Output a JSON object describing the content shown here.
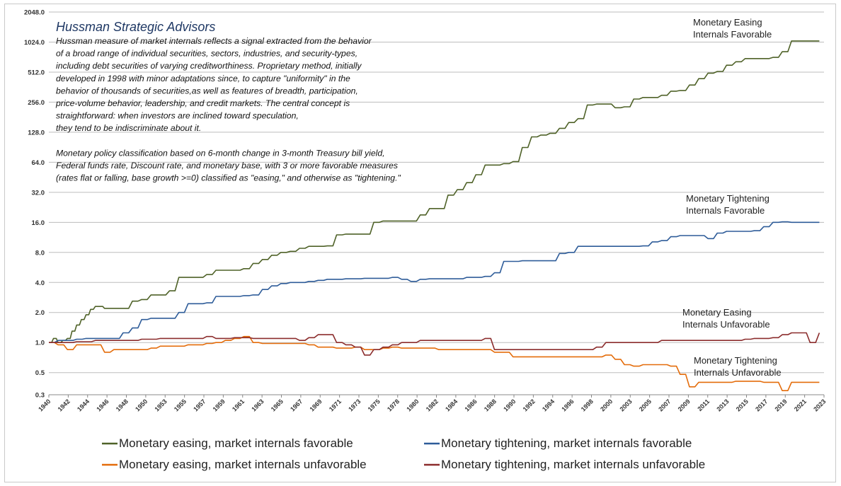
{
  "chart_data": {
    "type": "line",
    "yscale": "log2",
    "ylim": [
      0.3,
      2048
    ],
    "y_ticks": [
      {
        "value": 0.3,
        "label": "0.3"
      },
      {
        "value": 0.5,
        "label": "0.5"
      },
      {
        "value": 1,
        "label": "1.0"
      },
      {
        "value": 2,
        "label": "2.0"
      },
      {
        "value": 4,
        "label": "4.0"
      },
      {
        "value": 8,
        "label": "8.0"
      },
      {
        "value": 16,
        "label": "16.0"
      },
      {
        "value": 32,
        "label": "32.0"
      },
      {
        "value": 64,
        "label": "64.0"
      },
      {
        "value": 128,
        "label": "128.0"
      },
      {
        "value": 256,
        "label": "256.0"
      },
      {
        "value": 512,
        "label": "512.0"
      },
      {
        "value": 1024,
        "label": "1024.0"
      },
      {
        "value": 2048,
        "label": "2048.0"
      }
    ],
    "xlim": [
      1940,
      2023.5
    ],
    "x_ticks": [
      "1940",
      "1942",
      "1944",
      "1946",
      "1948",
      "1950",
      "1953",
      "1955",
      "1957",
      "1959",
      "1961",
      "1963",
      "1965",
      "1967",
      "1969",
      "1971",
      "1973",
      "1975",
      "1978",
      "1980",
      "1982",
      "1984",
      "1986",
      "1988",
      "1990",
      "1992",
      "1994",
      "1996",
      "1998",
      "2000",
      "2003",
      "2005",
      "2007",
      "2009",
      "2011",
      "2013",
      "2015",
      "2017",
      "2019",
      "2021",
      "2023"
    ],
    "annotation": {
      "title": "Hussman Strategic Advisors",
      "lines": [
        "Hussman measure of market internals reflects a signal extracted from the behavior",
        "of a broad range of individual securities, sectors, industries, and security-types,",
        "including debt securities of varying creditworthiness.  Proprietary method, initially",
        "developed in 1998 with minor adaptations  since, to capture \"uniformity\" in the",
        "behavior of thousands of securities,as  well as features of breadth, participation,",
        "price-volume behavior, leadership, and credit markets. The central concept is",
        "straightforward: when investors are inclined toward speculation,",
        "they tend to be indiscriminate about it.",
        "",
        "Monetary policy classification based on 6-month change in 3-month Treasury bill yield,",
        "Federal funds rate, Discount rate, and monetary base, with 3 or more favorable measures",
        "(rates flat or falling, base growth >=0) classified as \"easing,\" and otherwise as \"tightening.\""
      ]
    },
    "series": [
      {
        "name": "Monetary easing, market internals favorable",
        "label_lines": [
          "Monetary Easing",
          "Internals Favorable"
        ],
        "color": "#4f6228",
        "x": [
          1940,
          1940.5,
          1941,
          1941.5,
          1942,
          1942.5,
          1943,
          1943.5,
          1944,
          1944.5,
          1945,
          1945.5,
          1946,
          1947,
          1948,
          1949,
          1950,
          1951,
          1952,
          1953,
          1954,
          1955,
          1956,
          1957,
          1958,
          1959,
          1960,
          1961,
          1962,
          1963,
          1964,
          1965,
          1966,
          1967,
          1968,
          1969,
          1970,
          1971,
          1972,
          1973,
          1974,
          1975,
          1976,
          1977,
          1978,
          1979,
          1980,
          1981,
          1982,
          1983,
          1984,
          1985,
          1986,
          1987,
          1988,
          1989,
          1990,
          1991,
          1992,
          1993,
          1994,
          1995,
          1996,
          1997,
          1998,
          1999,
          2000,
          2001,
          2002,
          2003,
          2004,
          2005,
          2006,
          2007,
          2008,
          2009,
          2010,
          2011,
          2012,
          2013,
          2014,
          2015,
          2016,
          2017,
          2018,
          2019,
          2020,
          2021,
          2022,
          2023
        ],
        "values": [
          1.0,
          1.1,
          1.0,
          1.05,
          1.1,
          1.3,
          1.5,
          1.7,
          1.9,
          2.15,
          2.3,
          2.3,
          2.2,
          2.2,
          2.2,
          2.6,
          2.7,
          3.0,
          3.0,
          3.3,
          4.5,
          4.5,
          4.5,
          4.8,
          5.3,
          5.3,
          5.3,
          5.5,
          6.2,
          6.8,
          7.5,
          8.0,
          8.2,
          8.8,
          9.2,
          9.2,
          9.3,
          12.0,
          12.2,
          12.2,
          12.2,
          16.0,
          16.5,
          16.5,
          16.5,
          16.5,
          19.0,
          22,
          22,
          30,
          34,
          40,
          48,
          60,
          60,
          62,
          65,
          90,
          115,
          120,
          125,
          140,
          160,
          175,
          240,
          245,
          245,
          225,
          230,
          275,
          285,
          285,
          300,
          330,
          335,
          380,
          440,
          500,
          520,
          600,
          650,
          700,
          700,
          700,
          720,
          820,
          1050,
          1050,
          1050,
          1050
        ]
      },
      {
        "name": "Monetary tightening, market internals favorable",
        "label_lines": [
          "Monetary Tightening",
          "Internals Favorable"
        ],
        "color": "#2e5c99",
        "x": [
          1940,
          1941,
          1942,
          1943,
          1944,
          1945,
          1946,
          1947,
          1948,
          1949,
          1950,
          1951,
          1952,
          1953,
          1954,
          1955,
          1956,
          1957,
          1958,
          1959,
          1960,
          1961,
          1962,
          1963,
          1964,
          1965,
          1966,
          1967,
          1968,
          1969,
          1970,
          1971,
          1972,
          1973,
          1974,
          1975,
          1976,
          1977,
          1978,
          1979,
          1980,
          1981,
          1982,
          1983,
          1984,
          1985,
          1986,
          1987,
          1988,
          1989,
          1990,
          1991,
          1992,
          1993,
          1994,
          1995,
          1996,
          1997,
          1998,
          1999,
          2000,
          2001,
          2002,
          2003,
          2004,
          2005,
          2006,
          2007,
          2008,
          2009,
          2010,
          2011,
          2012,
          2013,
          2014,
          2015,
          2016,
          2017,
          2018,
          2019,
          2020,
          2021,
          2022,
          2023
        ],
        "values": [
          1.0,
          1.05,
          1.05,
          1.08,
          1.1,
          1.1,
          1.1,
          1.1,
          1.25,
          1.4,
          1.7,
          1.75,
          1.75,
          1.75,
          2.0,
          2.45,
          2.45,
          2.5,
          2.9,
          2.9,
          2.9,
          2.95,
          3.0,
          3.4,
          3.7,
          3.9,
          4.0,
          4.0,
          4.1,
          4.2,
          4.3,
          4.3,
          4.35,
          4.35,
          4.4,
          4.4,
          4.4,
          4.5,
          4.3,
          4.1,
          4.3,
          4.35,
          4.35,
          4.35,
          4.35,
          4.5,
          4.5,
          4.6,
          5.0,
          6.5,
          6.5,
          6.6,
          6.6,
          6.6,
          6.6,
          7.8,
          8.0,
          9.2,
          9.2,
          9.2,
          9.2,
          9.2,
          9.2,
          9.2,
          9.3,
          10.2,
          10.5,
          11.5,
          11.8,
          11.8,
          11.8,
          11.0,
          12.5,
          13.0,
          13.0,
          13.0,
          13.2,
          14.5,
          16.0,
          16.2,
          16.0,
          16.0,
          16.0,
          16.0
        ]
      },
      {
        "name": "Monetary easing, market internals unfavorable",
        "label_lines": [
          "Monetary Easing",
          "Internals Unfavorable"
        ],
        "color": "#e46c0a",
        "x": [
          1940,
          1941,
          1942,
          1943,
          1944,
          1945,
          1946,
          1947,
          1948,
          1949,
          1950,
          1951,
          1952,
          1953,
          1954,
          1955,
          1956,
          1957,
          1958,
          1959,
          1960,
          1961,
          1962,
          1963,
          1964,
          1965,
          1966,
          1967,
          1968,
          1969,
          1970,
          1971,
          1972,
          1973,
          1974,
          1975,
          1976,
          1977,
          1978,
          1979,
          1980,
          1981,
          1982,
          1983,
          1984,
          1985,
          1986,
          1987,
          1988,
          1989,
          1990,
          1991,
          1992,
          1993,
          1994,
          1995,
          1996,
          1997,
          1998,
          1999,
          2000,
          2001,
          2002,
          2003,
          2004,
          2005,
          2006,
          2007,
          2008,
          2009,
          2010,
          2011,
          2012,
          2013,
          2014,
          2015,
          2016,
          2017,
          2018,
          2019,
          2020,
          2021,
          2022,
          2023
        ],
        "values": [
          1.0,
          0.95,
          0.85,
          0.95,
          0.95,
          0.95,
          0.8,
          0.85,
          0.85,
          0.85,
          0.85,
          0.88,
          0.92,
          0.92,
          0.92,
          0.95,
          0.95,
          0.98,
          1.0,
          1.05,
          1.1,
          1.15,
          1.0,
          0.98,
          0.98,
          0.98,
          0.98,
          0.98,
          0.95,
          0.9,
          0.9,
          0.88,
          0.88,
          0.9,
          0.85,
          0.85,
          0.88,
          0.9,
          0.88,
          0.88,
          0.88,
          0.88,
          0.85,
          0.85,
          0.85,
          0.85,
          0.85,
          0.85,
          0.8,
          0.8,
          0.72,
          0.72,
          0.72,
          0.72,
          0.72,
          0.72,
          0.72,
          0.72,
          0.72,
          0.72,
          0.75,
          0.68,
          0.6,
          0.58,
          0.6,
          0.6,
          0.6,
          0.58,
          0.48,
          0.36,
          0.4,
          0.4,
          0.4,
          0.4,
          0.41,
          0.41,
          0.41,
          0.4,
          0.4,
          0.33,
          0.4,
          0.4,
          0.4,
          0.4
        ]
      },
      {
        "name": "Monetary tightening, market internals unfavorable",
        "label_lines": [
          "Monetary Tightening",
          "Internals Unfavorable"
        ],
        "color": "#8b2c2c",
        "x": [
          1940,
          1941,
          1942,
          1943,
          1944,
          1945,
          1946,
          1947,
          1948,
          1949,
          1950,
          1951,
          1952,
          1953,
          1954,
          1955,
          1956,
          1957,
          1958,
          1959,
          1960,
          1961,
          1962,
          1963,
          1964,
          1965,
          1966,
          1967,
          1968,
          1969,
          1970,
          1971,
          1972,
          1973,
          1974,
          1975,
          1976,
          1977,
          1978,
          1979,
          1980,
          1981,
          1982,
          1983,
          1984,
          1985,
          1986,
          1987,
          1988,
          1989,
          1990,
          1991,
          1992,
          1993,
          1994,
          1995,
          1996,
          1997,
          1998,
          1999,
          2000,
          2001,
          2002,
          2003,
          2004,
          2005,
          2006,
          2007,
          2008,
          2009,
          2010,
          2011,
          2012,
          2013,
          2014,
          2015,
          2016,
          2017,
          2018,
          2019,
          2020,
          2021,
          2022,
          2023
        ],
        "values": [
          1.0,
          1.0,
          1.0,
          1.02,
          1.02,
          1.05,
          1.05,
          1.05,
          1.05,
          1.05,
          1.08,
          1.08,
          1.1,
          1.1,
          1.1,
          1.1,
          1.1,
          1.15,
          1.1,
          1.1,
          1.12,
          1.12,
          1.1,
          1.1,
          1.1,
          1.1,
          1.1,
          1.05,
          1.12,
          1.2,
          1.2,
          1.0,
          0.95,
          0.9,
          0.75,
          0.85,
          0.9,
          0.95,
          1.0,
          1.0,
          1.05,
          1.05,
          1.05,
          1.05,
          1.05,
          1.05,
          1.05,
          1.1,
          0.85,
          0.85,
          0.85,
          0.85,
          0.85,
          0.85,
          0.85,
          0.85,
          0.85,
          0.85,
          0.85,
          0.9,
          1.0,
          1.0,
          1.0,
          1.0,
          1.0,
          1.0,
          1.05,
          1.05,
          1.05,
          1.05,
          1.05,
          1.05,
          1.05,
          1.05,
          1.05,
          1.08,
          1.1,
          1.1,
          1.12,
          1.2,
          1.25,
          1.25,
          1.0,
          1.25
        ]
      }
    ]
  }
}
